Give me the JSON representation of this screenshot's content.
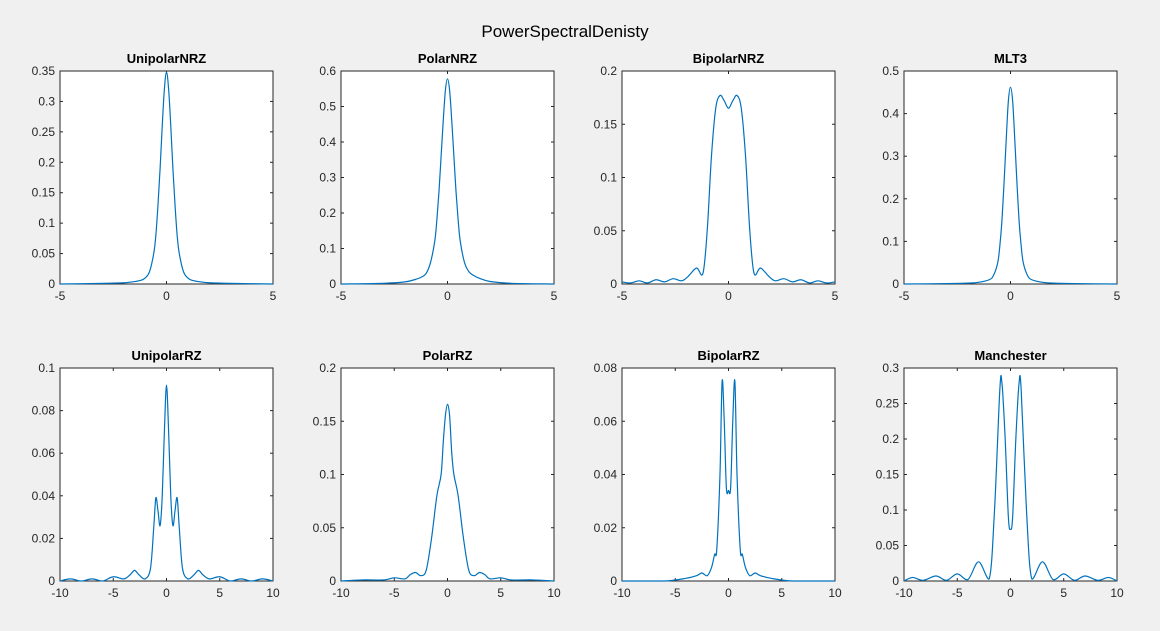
{
  "figure": {
    "title": "PowerSpectralDenisty",
    "line_color": "#0072bd",
    "background": "#f0f0f0"
  },
  "chart_data": [
    {
      "type": "line",
      "title": "UnipolarNRZ",
      "xlim": [
        -5,
        5
      ],
      "ylim": [
        0,
        0.35
      ],
      "xticks": [
        -5,
        0,
        5
      ],
      "yticks": [
        0,
        0.05,
        0.1,
        0.15,
        0.2,
        0.25,
        0.3,
        0.35
      ],
      "ytick_labels": [
        "0",
        "0.05",
        "0.1",
        "0.15",
        "0.2",
        "0.25",
        "0.3",
        "0.35"
      ],
      "x": [
        -5,
        -3,
        -2,
        -1.5,
        -1.2,
        -1,
        -0.8,
        -0.6,
        -0.5,
        -0.4,
        -0.3,
        -0.2,
        -0.1,
        0,
        0.1,
        0.2,
        0.3,
        0.4,
        0.5,
        0.6,
        0.8,
        1,
        1.2,
        1.5,
        2,
        3,
        5
      ],
      "y": [
        0,
        0.001,
        0.002,
        0.004,
        0.006,
        0.01,
        0.02,
        0.05,
        0.08,
        0.13,
        0.19,
        0.26,
        0.32,
        0.348,
        0.32,
        0.26,
        0.19,
        0.13,
        0.08,
        0.05,
        0.02,
        0.01,
        0.006,
        0.004,
        0.002,
        0.001,
        0
      ]
    },
    {
      "type": "line",
      "title": "PolarNRZ",
      "xlim": [
        -5,
        5
      ],
      "ylim": [
        0,
        0.6
      ],
      "xticks": [
        -5,
        0,
        5
      ],
      "yticks": [
        0,
        0.1,
        0.2,
        0.3,
        0.4,
        0.5,
        0.6
      ],
      "ytick_labels": [
        "0",
        "0.1",
        "0.2",
        "0.3",
        "0.4",
        "0.5",
        "0.6"
      ],
      "x": [
        -5,
        -3,
        -2,
        -1.5,
        -1.2,
        -1,
        -0.8,
        -0.6,
        -0.5,
        -0.4,
        -0.3,
        -0.2,
        -0.1,
        0,
        0.1,
        0.2,
        0.3,
        0.4,
        0.5,
        0.6,
        0.8,
        1,
        1.2,
        1.5,
        2,
        3,
        5
      ],
      "y": [
        0,
        0.002,
        0.006,
        0.013,
        0.02,
        0.03,
        0.06,
        0.12,
        0.18,
        0.26,
        0.36,
        0.46,
        0.545,
        0.578,
        0.545,
        0.46,
        0.36,
        0.26,
        0.18,
        0.12,
        0.06,
        0.035,
        0.025,
        0.016,
        0.007,
        0.002,
        0
      ]
    },
    {
      "type": "line",
      "title": "BipolarNRZ",
      "xlim": [
        -5,
        5
      ],
      "ylim": [
        0,
        0.2
      ],
      "xticks": [
        -5,
        0,
        5
      ],
      "yticks": [
        0,
        0.05,
        0.1,
        0.15,
        0.2
      ],
      "ytick_labels": [
        "0",
        "0.05",
        "0.1",
        "0.15",
        "0.2"
      ],
      "x": [
        -5,
        -4.6,
        -4.2,
        -3.8,
        -3.4,
        -3,
        -2.6,
        -2.2,
        -1.9,
        -1.5,
        -1.2,
        -1,
        -0.8,
        -0.6,
        -0.4,
        -0.2,
        0,
        0.2,
        0.4,
        0.6,
        0.8,
        1,
        1.2,
        1.5,
        1.9,
        2.2,
        2.6,
        3,
        3.4,
        3.8,
        4.2,
        4.6,
        5
      ],
      "y": [
        0.002,
        0.001,
        0.003,
        0.001,
        0.004,
        0.002,
        0.005,
        0.003,
        0.007,
        0.015,
        0.01,
        0.05,
        0.12,
        0.165,
        0.177,
        0.172,
        0.165,
        0.172,
        0.177,
        0.165,
        0.12,
        0.05,
        0.01,
        0.015,
        0.007,
        0.003,
        0.005,
        0.002,
        0.004,
        0.001,
        0.003,
        0.001,
        0.002
      ]
    },
    {
      "type": "line",
      "title": "MLT3",
      "xlim": [
        -5,
        5
      ],
      "ylim": [
        0,
        0.5
      ],
      "xticks": [
        -5,
        0,
        5
      ],
      "yticks": [
        0,
        0.1,
        0.2,
        0.3,
        0.4,
        0.5
      ],
      "ytick_labels": [
        "0",
        "0.1",
        "0.2",
        "0.3",
        "0.4",
        "0.5"
      ],
      "x": [
        -5,
        -3,
        -2,
        -1.5,
        -1,
        -0.8,
        -0.6,
        -0.5,
        -0.4,
        -0.3,
        -0.2,
        -0.1,
        0,
        0.1,
        0.2,
        0.3,
        0.4,
        0.5,
        0.6,
        0.8,
        1,
        1.5,
        2,
        3,
        5
      ],
      "y": [
        0,
        0.001,
        0.002,
        0.004,
        0.01,
        0.02,
        0.05,
        0.09,
        0.15,
        0.24,
        0.34,
        0.43,
        0.462,
        0.43,
        0.34,
        0.24,
        0.15,
        0.09,
        0.05,
        0.02,
        0.01,
        0.004,
        0.002,
        0.001,
        0
      ]
    },
    {
      "type": "line",
      "title": "UnipolarRZ",
      "xlim": [
        -10,
        10
      ],
      "ylim": [
        0,
        0.1
      ],
      "xticks": [
        -10,
        -5,
        0,
        5,
        10
      ],
      "yticks": [
        0,
        0.02,
        0.04,
        0.06,
        0.08,
        0.1
      ],
      "ytick_labels": [
        "0",
        "0.02",
        "0.04",
        "0.06",
        "0.08",
        "0.1"
      ],
      "x": [
        -10,
        -9,
        -8,
        -7,
        -6,
        -5,
        -4,
        -3.4,
        -3,
        -2.6,
        -2,
        -1.5,
        -1.2,
        -1,
        -0.8,
        -0.6,
        -0.4,
        -0.2,
        0,
        0.2,
        0.4,
        0.6,
        0.8,
        1,
        1.2,
        1.5,
        2,
        2.6,
        3,
        3.4,
        4,
        5,
        6,
        7,
        8,
        9,
        10
      ],
      "y": [
        0,
        0.001,
        0,
        0.001,
        0,
        0.002,
        0.001,
        0.003,
        0.005,
        0.003,
        0.001,
        0.006,
        0.025,
        0.039,
        0.033,
        0.026,
        0.04,
        0.07,
        0.092,
        0.07,
        0.04,
        0.026,
        0.033,
        0.039,
        0.025,
        0.006,
        0.001,
        0.003,
        0.005,
        0.003,
        0.001,
        0.002,
        0,
        0.001,
        0,
        0.001,
        0
      ]
    },
    {
      "type": "line",
      "title": "PolarRZ",
      "xlim": [
        -10,
        10
      ],
      "ylim": [
        0,
        0.2
      ],
      "xticks": [
        -10,
        -5,
        0,
        5,
        10
      ],
      "yticks": [
        0,
        0.05,
        0.1,
        0.15,
        0.2
      ],
      "ytick_labels": [
        "0",
        "0.05",
        "0.1",
        "0.15",
        "0.2"
      ],
      "x": [
        -10,
        -8,
        -6,
        -5,
        -4,
        -3.5,
        -3,
        -2.5,
        -2,
        -1.5,
        -1,
        -0.6,
        -0.4,
        -0.2,
        0,
        0.2,
        0.4,
        0.6,
        1,
        1.5,
        2,
        2.5,
        3,
        3.5,
        4,
        5,
        6,
        8,
        10
      ],
      "y": [
        0,
        0.001,
        0.001,
        0.003,
        0.002,
        0.006,
        0.008,
        0.005,
        0.01,
        0.04,
        0.08,
        0.1,
        0.13,
        0.155,
        0.166,
        0.155,
        0.12,
        0.1,
        0.08,
        0.04,
        0.01,
        0.005,
        0.008,
        0.006,
        0.002,
        0.003,
        0.001,
        0.001,
        0
      ]
    },
    {
      "type": "line",
      "title": "BipolarRZ",
      "xlim": [
        -10,
        10
      ],
      "ylim": [
        0,
        0.08
      ],
      "xticks": [
        -10,
        -5,
        0,
        5,
        10
      ],
      "yticks": [
        0,
        0.02,
        0.04,
        0.06,
        0.08
      ],
      "ytick_labels": [
        "0",
        "0.02",
        "0.04",
        "0.06",
        "0.08"
      ],
      "x": [
        -10,
        -6,
        -4,
        -3,
        -2.5,
        -2,
        -1.6,
        -1.3,
        -1.1,
        -0.8,
        -0.6,
        -0.4,
        -0.2,
        0,
        0.2,
        0.4,
        0.6,
        0.8,
        1.1,
        1.3,
        1.6,
        2,
        2.5,
        3,
        4,
        6,
        10
      ],
      "y": [
        0,
        0,
        0.001,
        0.002,
        0.003,
        0.002,
        0.005,
        0.01,
        0.012,
        0.04,
        0.075,
        0.06,
        0.035,
        0.034,
        0.035,
        0.06,
        0.075,
        0.04,
        0.012,
        0.01,
        0.005,
        0.002,
        0.003,
        0.002,
        0.001,
        0,
        0
      ]
    },
    {
      "type": "line",
      "title": "Manchester",
      "xlim": [
        -10,
        10
      ],
      "ylim": [
        0,
        0.3
      ],
      "xticks": [
        -10,
        -5,
        0,
        5,
        10
      ],
      "yticks": [
        0,
        0.05,
        0.1,
        0.15,
        0.2,
        0.25,
        0.3
      ],
      "ytick_labels": [
        "0",
        "0.05",
        "0.1",
        "0.15",
        "0.2",
        "0.25",
        "0.3"
      ],
      "x": [
        -10,
        -9.2,
        -8.2,
        -7,
        -6,
        -5,
        -4,
        -3,
        -2,
        -1.5,
        -1,
        -0.8,
        -0.5,
        -0.2,
        0,
        0.2,
        0.5,
        0.8,
        1,
        1.5,
        2,
        3,
        4,
        5,
        6,
        7,
        8.2,
        9.2,
        10
      ],
      "y": [
        0,
        0.005,
        0.001,
        0.007,
        0.001,
        0.01,
        0.002,
        0.027,
        0.003,
        0.1,
        0.27,
        0.278,
        0.2,
        0.09,
        0.073,
        0.09,
        0.2,
        0.278,
        0.27,
        0.1,
        0.003,
        0.027,
        0.002,
        0.01,
        0.001,
        0.007,
        0.001,
        0.005,
        0
      ]
    }
  ]
}
